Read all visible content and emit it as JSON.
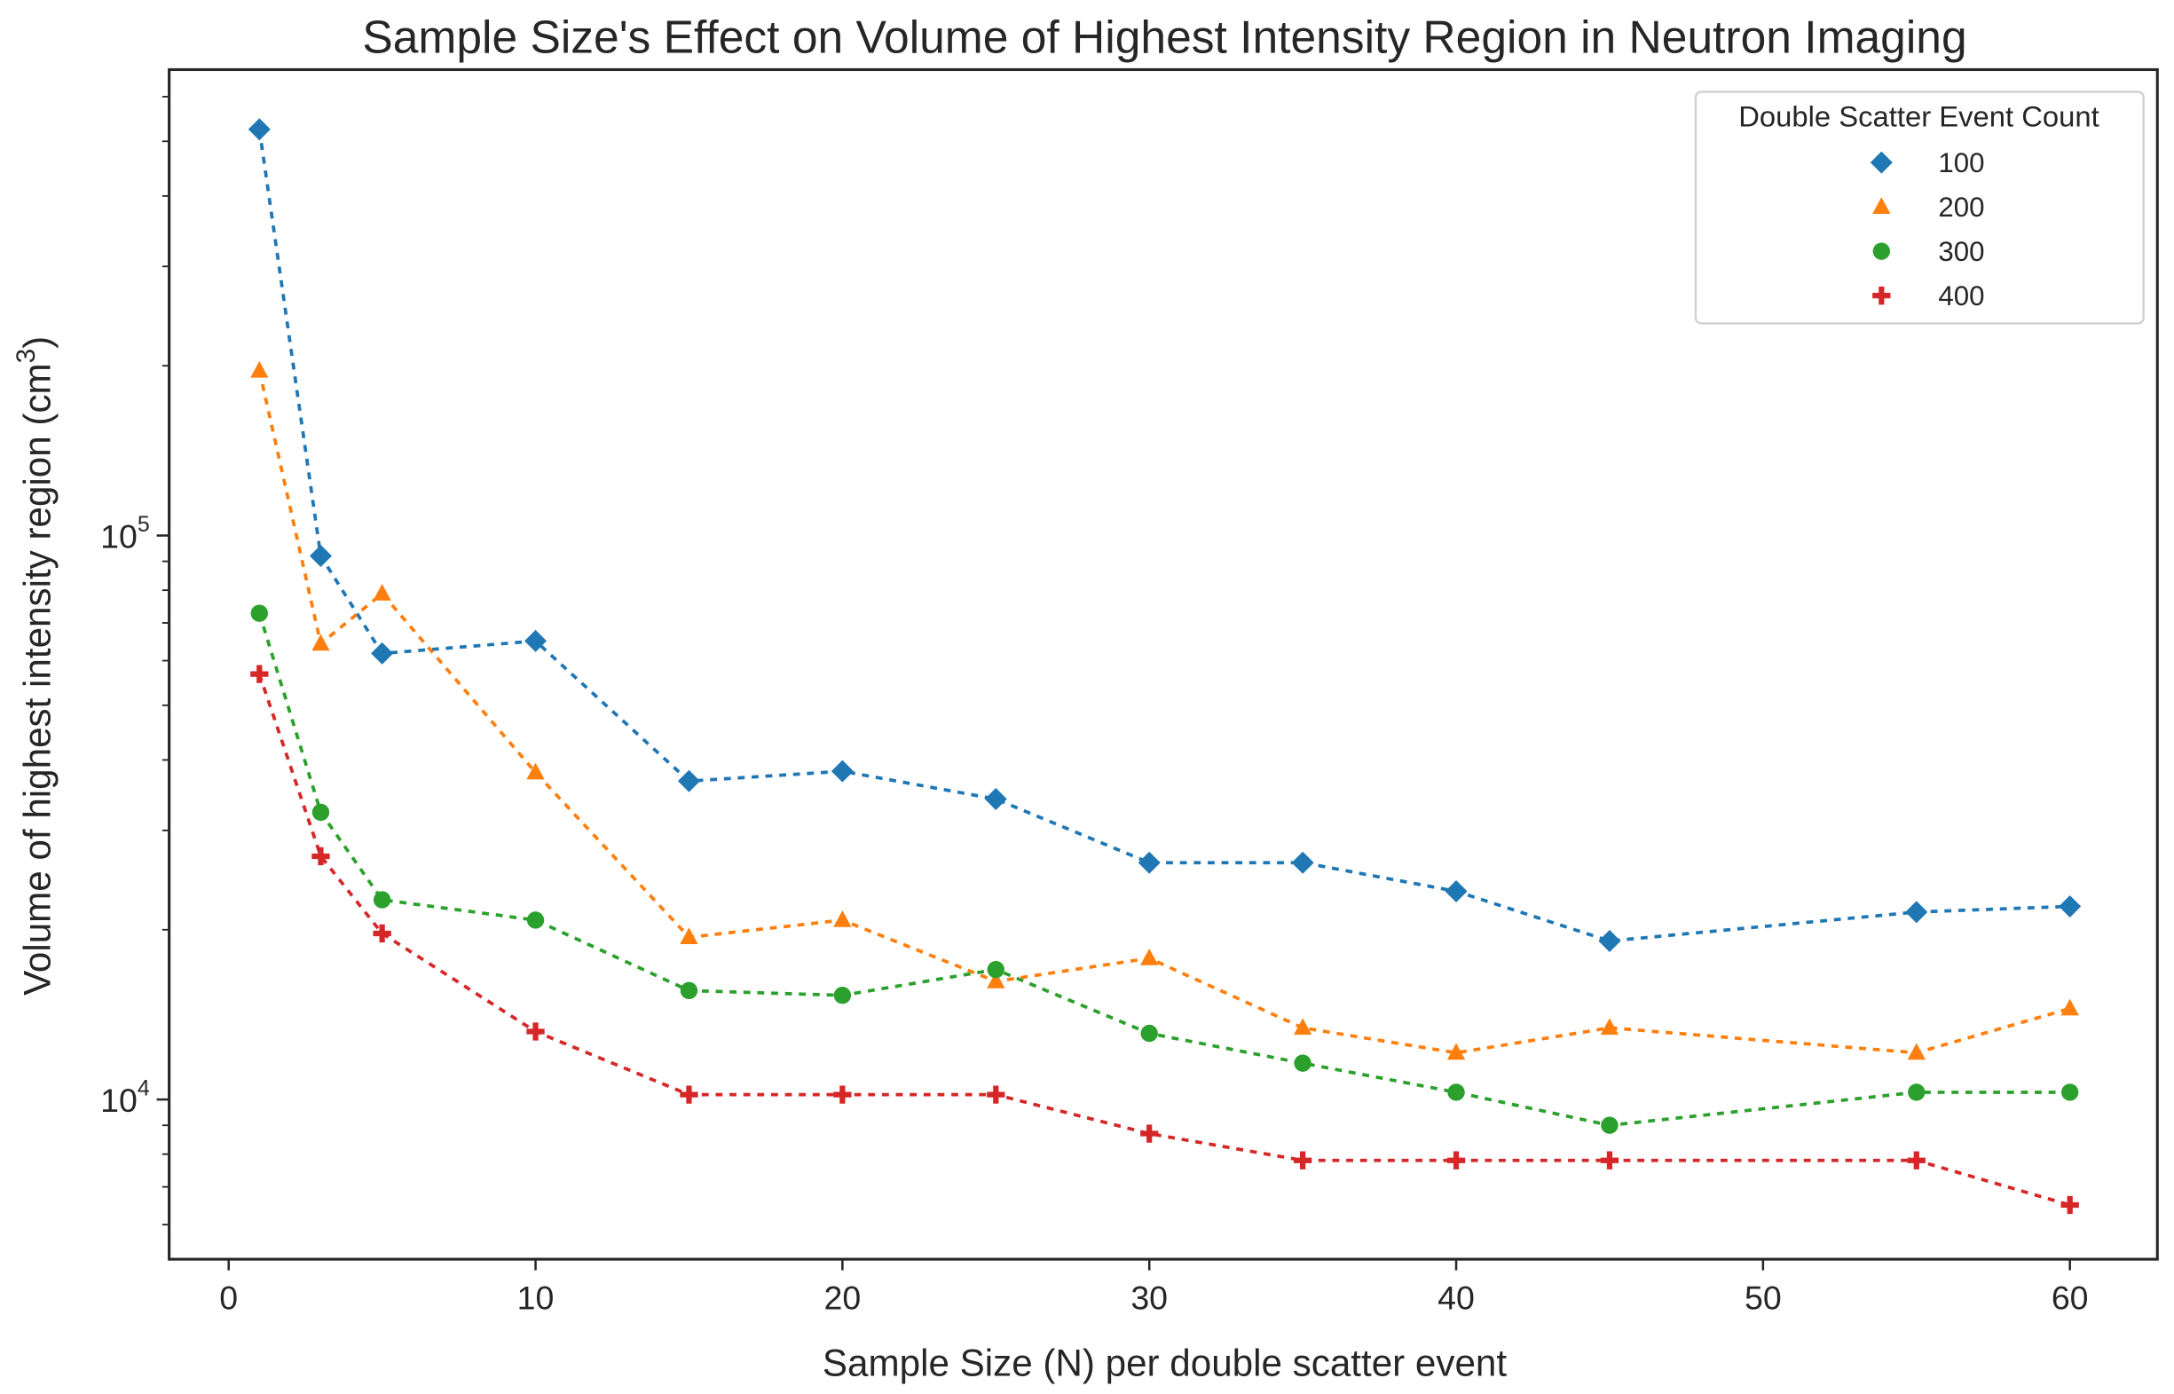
{
  "chart_data": {
    "type": "line",
    "title": "Sample Size's Effect on Volume of Highest Intensity Region in Neutron Imaging",
    "xlabel": "Sample Size (N) per double scatter event",
    "ylabel": "Volume of highest intensity region (cm",
    "ylabel_sup": "3",
    "ylabel_end": ")",
    "yscale": "log",
    "xlim": [
      -1.94,
      62.85
    ],
    "ylim": [
      5210,
      670000
    ],
    "xticks": [
      0,
      10,
      20,
      30,
      40,
      50,
      60
    ],
    "yticks": [
      {
        "base": "10",
        "exp": "4",
        "value": 10000
      },
      {
        "base": "10",
        "exp": "5",
        "value": 100000
      }
    ],
    "grid": false,
    "legend": {
      "title": "Double Scatter Event Count",
      "placement": "top-right"
    },
    "x": [
      1,
      3,
      5,
      10,
      15,
      20,
      25,
      30,
      35,
      40,
      45,
      55,
      60
    ],
    "series": [
      {
        "name": "100",
        "marker": "diamond",
        "color": "#1f77b4",
        "values": [
          525000,
          92000,
          61800,
          65000,
          36700,
          38200,
          34100,
          26300,
          26300,
          23400,
          19100,
          21500,
          22000
        ]
      },
      {
        "name": "200",
        "marker": "triangle",
        "color": "#ff7f0e",
        "values": [
          196000,
          64300,
          78900,
          38000,
          19400,
          20800,
          16200,
          17800,
          13400,
          12100,
          13400,
          12100,
          14500
        ]
      },
      {
        "name": "300",
        "marker": "circle",
        "color": "#2ca02c",
        "values": [
          72800,
          32300,
          22600,
          20800,
          15600,
          15300,
          17000,
          13100,
          11600,
          10300,
          9000,
          10300,
          10300
        ]
      },
      {
        "name": "400",
        "marker": "plus",
        "color": "#d62728",
        "values": [
          56800,
          27000,
          19700,
          13200,
          10200,
          10200,
          10200,
          8700,
          7800,
          7800,
          7800,
          7800,
          6500
        ]
      }
    ]
  }
}
